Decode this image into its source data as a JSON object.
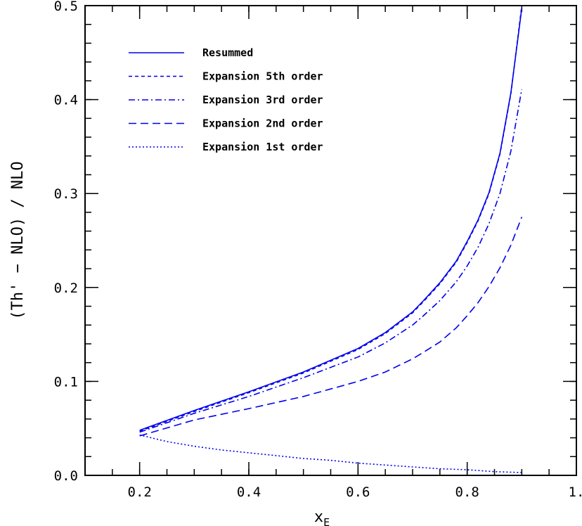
{
  "chart_data": {
    "type": "line",
    "xlabel": "x",
    "xlabel_sub": "E",
    "ylabel": "(Th' − NLO) / NLO",
    "xlim": [
      0.1,
      1.0
    ],
    "ylim": [
      0.0,
      0.5
    ],
    "x_ticks": [
      {
        "value": 0.2,
        "label": "0.2"
      },
      {
        "value": 0.4,
        "label": "0.4"
      },
      {
        "value": 0.6,
        "label": "0.6"
      },
      {
        "value": 0.8,
        "label": "0.8"
      },
      {
        "value": 1.0,
        "label": "1."
      }
    ],
    "y_ticks": [
      {
        "value": 0.0,
        "label": "0.0"
      },
      {
        "value": 0.1,
        "label": "0.1"
      },
      {
        "value": 0.2,
        "label": "0.2"
      },
      {
        "value": 0.3,
        "label": "0.3"
      },
      {
        "value": 0.4,
        "label": "0.4"
      },
      {
        "value": 0.5,
        "label": "0.5"
      }
    ],
    "x_minor_step": 0.05,
    "y_minor_step": 0.02,
    "grid": false,
    "legend_position": "top-left",
    "color": "#0000ee",
    "series": [
      {
        "name": "Resummed",
        "dash": "solid",
        "x": [
          0.2,
          0.3,
          0.4,
          0.5,
          0.6,
          0.65,
          0.7,
          0.72,
          0.75,
          0.78,
          0.8,
          0.82,
          0.84,
          0.86,
          0.88,
          0.9
        ],
        "y": [
          0.048,
          0.069,
          0.089,
          0.11,
          0.135,
          0.152,
          0.174,
          0.186,
          0.205,
          0.228,
          0.249,
          0.272,
          0.301,
          0.343,
          0.407,
          0.497
        ]
      },
      {
        "name": "Expansion 5th order",
        "dash": "5,4",
        "x": [
          0.2,
          0.3,
          0.4,
          0.5,
          0.6,
          0.65,
          0.7,
          0.72,
          0.75,
          0.78,
          0.8,
          0.82,
          0.84,
          0.86,
          0.88,
          0.9
        ],
        "y": [
          0.047,
          0.068,
          0.088,
          0.109,
          0.134,
          0.151,
          0.173,
          0.185,
          0.204,
          0.227,
          0.248,
          0.271,
          0.3,
          0.342,
          0.406,
          0.5
        ]
      },
      {
        "name": "Expansion 3rd order",
        "dash": "9,4,2,4",
        "x": [
          0.2,
          0.3,
          0.4,
          0.5,
          0.6,
          0.65,
          0.7,
          0.72,
          0.75,
          0.78,
          0.8,
          0.82,
          0.84,
          0.86,
          0.88,
          0.9
        ],
        "y": [
          0.046,
          0.066,
          0.084,
          0.104,
          0.126,
          0.141,
          0.16,
          0.17,
          0.186,
          0.206,
          0.223,
          0.243,
          0.268,
          0.3,
          0.345,
          0.411
        ]
      },
      {
        "name": "Expansion 2nd order",
        "dash": "11,6",
        "x": [
          0.2,
          0.3,
          0.4,
          0.5,
          0.6,
          0.65,
          0.7,
          0.72,
          0.75,
          0.78,
          0.8,
          0.82,
          0.84,
          0.86,
          0.88,
          0.9
        ],
        "y": [
          0.042,
          0.059,
          0.071,
          0.084,
          0.1,
          0.11,
          0.124,
          0.131,
          0.142,
          0.157,
          0.17,
          0.184,
          0.201,
          0.221,
          0.245,
          0.275
        ]
      },
      {
        "name": "Expansion 1st order",
        "dash": "2,3",
        "x": [
          0.2,
          0.25,
          0.3,
          0.35,
          0.4,
          0.45,
          0.5,
          0.55,
          0.6,
          0.65,
          0.7,
          0.75,
          0.8,
          0.85,
          0.9
        ],
        "y": [
          0.043,
          0.036,
          0.031,
          0.027,
          0.024,
          0.021,
          0.018,
          0.016,
          0.013,
          0.011,
          0.009,
          0.007,
          0.006,
          0.004,
          0.003
        ]
      }
    ]
  }
}
